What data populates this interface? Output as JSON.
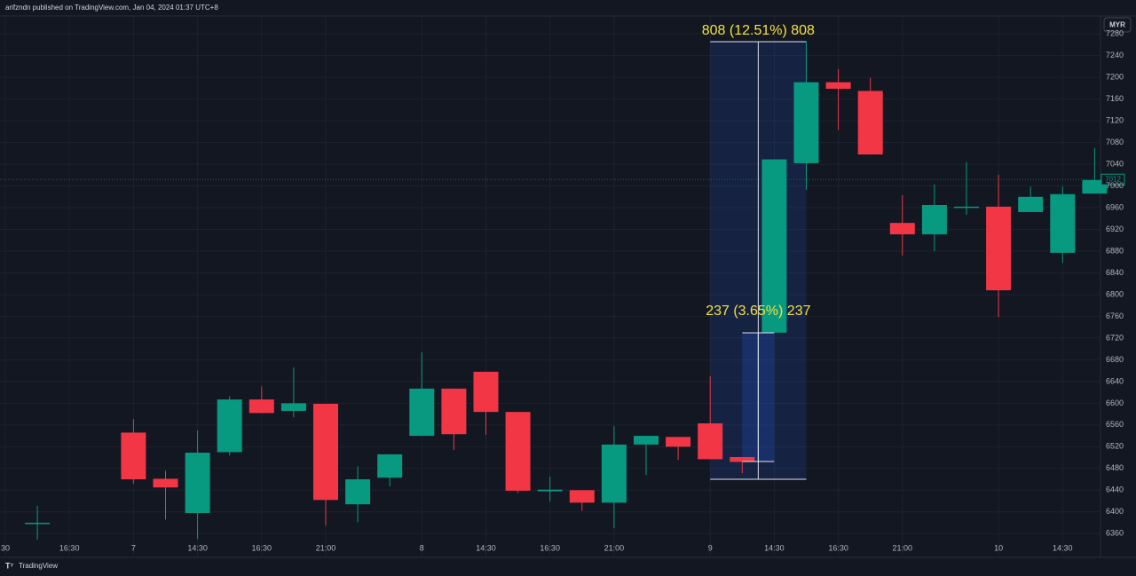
{
  "header": {
    "text": "arifzndn published on TradingView.com, Jan 04, 2024 01:37 UTC+8"
  },
  "currency": "MYR",
  "footer": {
    "brand": "TradingView"
  },
  "chart_data": {
    "type": "candlestick",
    "categories": [
      "30",
      null,
      "16:30",
      null,
      "7",
      null,
      "14:30",
      null,
      "16:30",
      null,
      "21:00",
      null,
      null,
      "8",
      null,
      "14:30",
      null,
      "16:30",
      null,
      "21:00",
      null,
      null,
      "9",
      null,
      "14:30",
      null,
      "16:30",
      null,
      "21:00",
      null,
      null,
      "10",
      null,
      "14:30",
      null
    ],
    "open": [
      null,
      6380,
      null,
      null,
      6546,
      6461,
      6398,
      6510,
      6607,
      6586,
      6599,
      6414,
      6463,
      6540,
      6627,
      6658,
      6584,
      6438,
      6440,
      6417,
      6524,
      6538,
      6563,
      6501,
      6730,
      7042,
      7191,
      7175,
      6932,
      6911,
      6961,
      6962,
      6952,
      6877,
      6986
    ],
    "high": [
      null,
      6411,
      null,
      null,
      6571,
      6476,
      6550,
      6613,
      6631,
      6666,
      6599,
      6484,
      6506,
      6694,
      6627,
      6658,
      6584,
      6465,
      6440,
      6558,
      6540,
      6538,
      6650,
      6501,
      7049,
      7265,
      7215,
      7199,
      6983,
      7003,
      7044,
      7021,
      6999,
      6999,
      7070
    ],
    "low": [
      null,
      6349,
      null,
      null,
      6452,
      6386,
      6350,
      6504,
      6582,
      6574,
      6375,
      6381,
      6447,
      6540,
      6514,
      6542,
      6435,
      6419,
      6402,
      6370,
      6468,
      6496,
      6497,
      6471,
      6730,
      6993,
      7103,
      7058,
      6872,
      6880,
      6947,
      6759,
      6952,
      6859,
      6986
    ],
    "close": [
      null,
      6380,
      null,
      null,
      6460,
      6445,
      6509,
      6607,
      6582,
      6600,
      6422,
      6460,
      6506,
      6627,
      6543,
      6584,
      6439,
      6441,
      6417,
      6524,
      6540,
      6520,
      6497,
      6492,
      7049,
      7191,
      7179,
      7058,
      6911,
      6965,
      6962,
      6808,
      6980,
      6985,
      7011
    ],
    "up_color": "#089981",
    "down_color": "#f23645",
    "ylim": [
      6349,
      7313
    ],
    "yticks": [
      6360,
      6400,
      6440,
      6480,
      6520,
      6560,
      6600,
      6640,
      6680,
      6720,
      6760,
      6800,
      6840,
      6880,
      6920,
      6960,
      7000,
      7040,
      7080,
      7120,
      7160,
      7200,
      7240,
      7280
    ],
    "grid": true,
    "last_price": 7012,
    "annotations": [
      "808 (12.51%) 808",
      "237 (3.65%) 237"
    ]
  }
}
